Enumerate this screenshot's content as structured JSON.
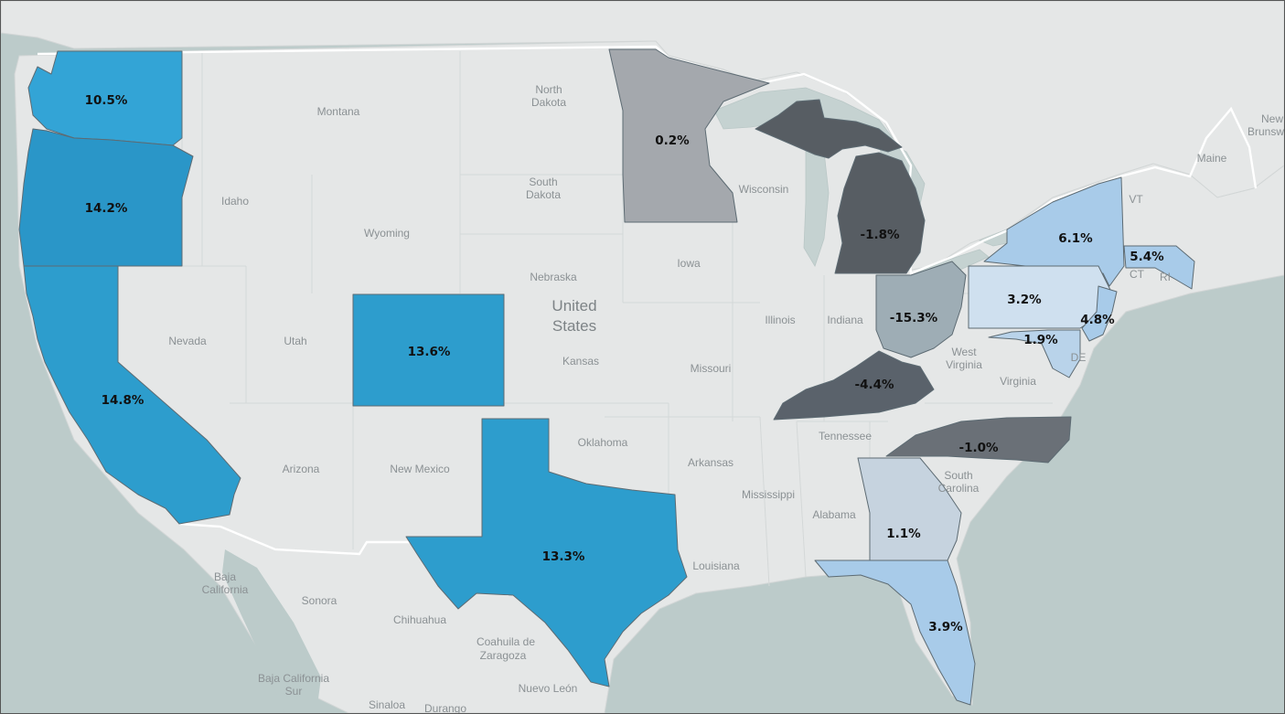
{
  "map": {
    "type": "choropleth",
    "colors": {
      "strong_positive": "#2d9dcd",
      "positive_light": "#a8cbe9",
      "positive_pale": "#c6d9ec",
      "near_zero": "#a4a8ad",
      "negative_mid": "#5a626b",
      "negative_dark": "#4e555b",
      "negative_light": "#9eadb5",
      "land": "#e5e7e7",
      "water": "#bccbca"
    },
    "states": [
      {
        "name": "Washington",
        "value": "10.5%"
      },
      {
        "name": "Oregon",
        "value": "14.2%"
      },
      {
        "name": "California",
        "value": "14.8%"
      },
      {
        "name": "Colorado",
        "value": "13.6%"
      },
      {
        "name": "Texas",
        "value": "13.3%"
      },
      {
        "name": "Minnesota",
        "value": "0.2%"
      },
      {
        "name": "Michigan",
        "value": "-1.8%"
      },
      {
        "name": "Ohio",
        "value": "-15.3%"
      },
      {
        "name": "Kentucky",
        "value": "-4.4%"
      },
      {
        "name": "North Carolina",
        "value": "-1.0%"
      },
      {
        "name": "Georgia",
        "value": "1.1%"
      },
      {
        "name": "Florida",
        "value": "3.9%"
      },
      {
        "name": "New York",
        "value": "6.1%"
      },
      {
        "name": "Massachusetts",
        "value": "5.4%"
      },
      {
        "name": "Pennsylvania",
        "value": "3.2%"
      },
      {
        "name": "New Jersey",
        "value": "4.8%"
      },
      {
        "name": "Maryland",
        "value": "1.9%"
      }
    ],
    "base_labels": {
      "montana": "Montana",
      "north": "North",
      "dakota": "Dakota",
      "south": "South",
      "s_dakota": "Dakota",
      "idaho": "Idaho",
      "wyoming": "Wyoming",
      "nebraska": "Nebraska",
      "united": "United",
      "states": "States",
      "nevada": "Nevada",
      "utah": "Utah",
      "iowa": "Iowa",
      "illinois": "Illinois",
      "indiana": "Indiana",
      "kansas": "Kansas",
      "missouri": "Missouri",
      "wisconsin": "Wisconsin",
      "west": "West",
      "west_virginia": "Virginia",
      "virginia": "Virginia",
      "tennessee": "Tennessee",
      "oklahoma": "Oklahoma",
      "arkansas": "Arkansas",
      "arizona": "Arizona",
      "new_mexico": "New Mexico",
      "mississippi": "Mississippi",
      "alabama": "Alabama",
      "sc_south": "South",
      "sc_carolina": "Carolina",
      "louisiana": "Louisiana",
      "maine": "Maine",
      "vt": "VT",
      "ct": "CT",
      "ri": "RI",
      "de": "DE",
      "new_brunswick_1": "New",
      "new_brunswick_2": "Brunsw",
      "baja_1": "Baja",
      "baja_2": "California",
      "sonora": "Sonora",
      "chihuahua": "Chihuahua",
      "coahuila_1": "Coahuila de",
      "coahuila_2": "Zaragoza",
      "baja_sur_1": "Baja California",
      "baja_sur_2": "Sur",
      "nuevo_leon": "Nuevo León",
      "sinaloa": "Sinaloa",
      "durango": "Durango"
    }
  }
}
